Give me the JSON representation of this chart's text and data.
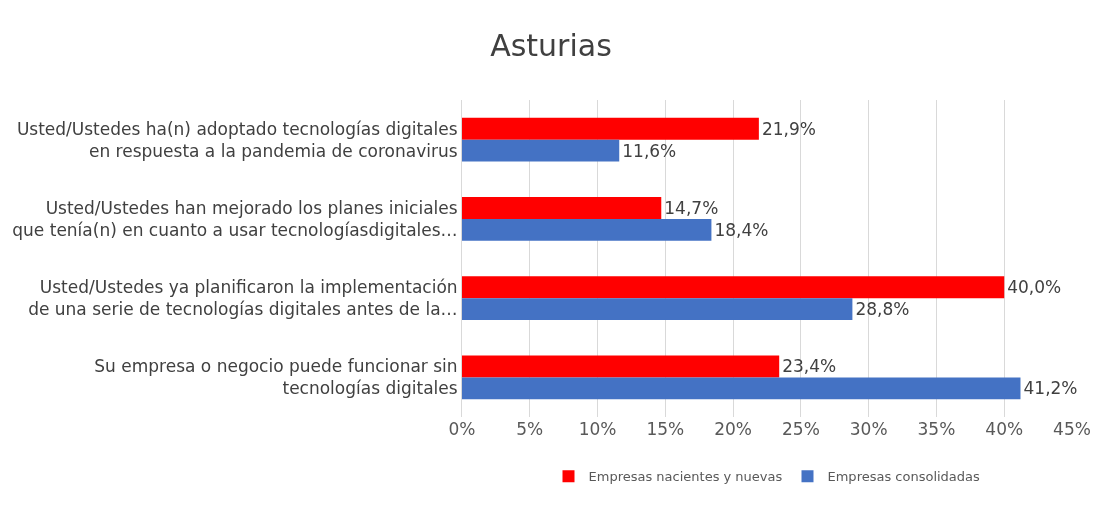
{
  "chart_data": {
    "type": "bar",
    "orientation": "horizontal",
    "title": "Asturias",
    "categories": [
      "Usted/Ustedes ha(n) adoptado tecnologías digitales\nen respuesta a la pandemia de coronavirus",
      "Usted/Ustedes han mejorado los planes iniciales\nque tenía(n) en cuanto a usar tecnologíasdigitales…",
      "Usted/Ustedes ya planificaron la implementación\nde una serie de tecnologías digitales antes de la…",
      "Su empresa o negocio puede funcionar sin\ntecnologías digitales"
    ],
    "series": [
      {
        "name": "Empresas nacientes y nuevas",
        "color": "#ff0000",
        "values": [
          21.9,
          14.7,
          40.0,
          23.4
        ],
        "value_labels": [
          "21,9%",
          "14,7%",
          "40,0%",
          "23,4%"
        ]
      },
      {
        "name": "Empresas consolidadas",
        "color": "#4472c4",
        "values": [
          11.6,
          18.4,
          28.8,
          41.2
        ],
        "value_labels": [
          "11,6%",
          "18,4%",
          "28,8%",
          "41,2%"
        ]
      }
    ],
    "xlim": [
      0,
      45
    ],
    "xticks": [
      {
        "value": 0,
        "label": "0%"
      },
      {
        "value": 5,
        "label": "5%"
      },
      {
        "value": 10,
        "label": "10%"
      },
      {
        "value": 15,
        "label": "15%"
      },
      {
        "value": 20,
        "label": "20%"
      },
      {
        "value": 25,
        "label": "25%"
      },
      {
        "value": 30,
        "label": "30%"
      },
      {
        "value": 35,
        "label": "35%"
      },
      {
        "value": 40,
        "label": "40%"
      },
      {
        "value": 45,
        "label": "45%"
      }
    ],
    "grid": "x",
    "legend": "bottom"
  }
}
